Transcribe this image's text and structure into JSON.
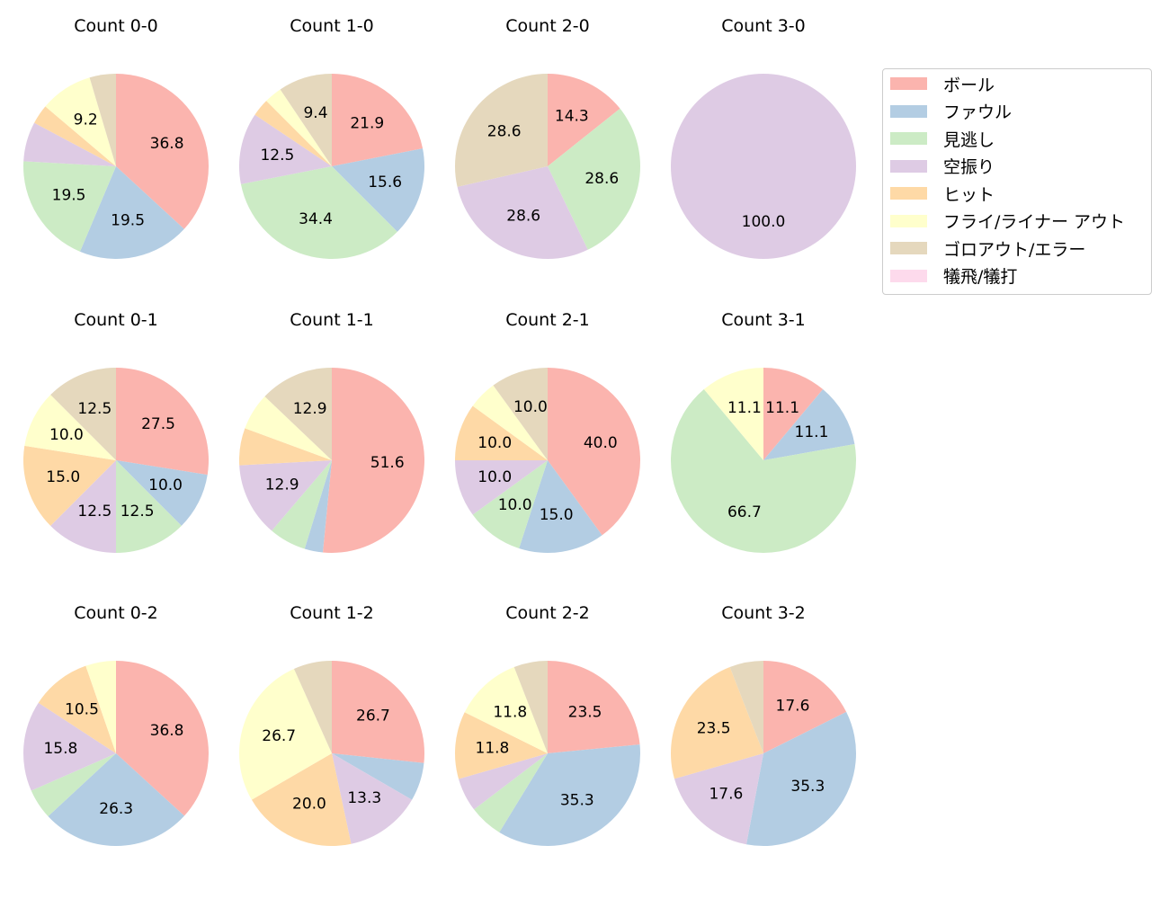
{
  "chart_data": {
    "type": "pie",
    "start_angle": "top",
    "direction": "clockwise",
    "legend": {
      "placement": "right",
      "entries": [
        "ボール",
        "ファウル",
        "見逃し",
        "空振り",
        "ヒット",
        "フライ/ライナー アウト",
        "ゴロアウト/エラー",
        "犠飛/犠打"
      ]
    },
    "colors": [
      "#fbb4ae",
      "#b3cde3",
      "#ccebc5",
      "#decbe4",
      "#fed9a6",
      "#ffffcc",
      "#e5d8bd",
      "#fddaec"
    ],
    "pies": [
      {
        "title": "Count 0-0",
        "values": [
          36.8,
          19.5,
          19.5,
          6.9,
          3.4,
          9.2,
          4.6,
          0
        ],
        "labels": [
          "36.8",
          "19.5",
          "19.5",
          "",
          "",
          "9.2",
          "",
          ""
        ]
      },
      {
        "title": "Count 1-0",
        "values": [
          21.9,
          15.6,
          34.4,
          12.5,
          3.1,
          3.1,
          9.4,
          0
        ],
        "labels": [
          "21.9",
          "15.6",
          "34.4",
          "12.5",
          "",
          "",
          "9.4",
          ""
        ]
      },
      {
        "title": "Count 2-0",
        "values": [
          14.3,
          0,
          28.6,
          28.6,
          0,
          0,
          28.6,
          0
        ],
        "labels": [
          "14.3",
          "",
          "28.6",
          "28.6",
          "",
          "",
          "28.6",
          ""
        ]
      },
      {
        "title": "Count 3-0",
        "values": [
          0,
          0,
          0,
          100.0,
          0,
          0,
          0,
          0
        ],
        "labels": [
          "",
          "",
          "",
          "100.0",
          "",
          "",
          "",
          ""
        ]
      },
      {
        "title": "Count 0-1",
        "values": [
          27.5,
          10.0,
          12.5,
          12.5,
          15.0,
          10.0,
          12.5,
          0
        ],
        "labels": [
          "27.5",
          "10.0",
          "12.5",
          "12.5",
          "15.0",
          "10.0",
          "12.5",
          ""
        ]
      },
      {
        "title": "Count 1-1",
        "values": [
          51.6,
          3.2,
          6.5,
          12.9,
          6.5,
          6.5,
          12.9,
          0
        ],
        "labels": [
          "51.6",
          "",
          "",
          "12.9",
          "",
          "",
          "12.9",
          ""
        ]
      },
      {
        "title": "Count 2-1",
        "values": [
          40.0,
          15.0,
          10.0,
          10.0,
          10.0,
          5.0,
          10.0,
          0
        ],
        "labels": [
          "40.0",
          "15.0",
          "10.0",
          "10.0",
          "10.0",
          "",
          "10.0",
          ""
        ]
      },
      {
        "title": "Count 3-1",
        "values": [
          11.1,
          11.1,
          66.7,
          0,
          0,
          11.1,
          0,
          0
        ],
        "labels": [
          "11.1",
          "11.1",
          "66.7",
          "",
          "",
          "11.1",
          "",
          ""
        ]
      },
      {
        "title": "Count 0-2",
        "values": [
          36.8,
          26.3,
          5.3,
          15.8,
          10.5,
          5.3,
          0,
          0
        ],
        "labels": [
          "36.8",
          "26.3",
          "",
          "15.8",
          "10.5",
          "",
          "",
          ""
        ]
      },
      {
        "title": "Count 1-2",
        "values": [
          26.7,
          6.7,
          0,
          13.3,
          20.0,
          26.7,
          6.7,
          0
        ],
        "labels": [
          "26.7",
          "",
          "",
          "13.3",
          "20.0",
          "26.7",
          "",
          ""
        ]
      },
      {
        "title": "Count 2-2",
        "values": [
          23.5,
          35.3,
          5.9,
          5.9,
          11.8,
          11.8,
          5.9,
          0
        ],
        "labels": [
          "23.5",
          "35.3",
          "",
          "",
          "11.8",
          "11.8",
          "",
          ""
        ]
      },
      {
        "title": "Count 3-2",
        "values": [
          17.6,
          35.3,
          0,
          17.6,
          23.5,
          0,
          5.9,
          0
        ],
        "labels": [
          "17.6",
          "35.3",
          "",
          "17.6",
          "23.5",
          "",
          "",
          ""
        ]
      }
    ]
  }
}
